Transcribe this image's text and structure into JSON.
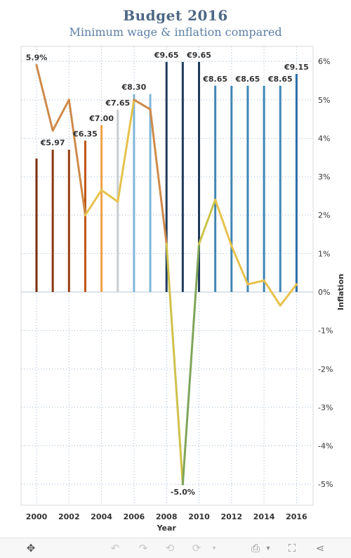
{
  "header": {
    "title": "Budget  2016",
    "subtitle": "Minimum wage & inflation compared"
  },
  "chart_data": {
    "type": "bar",
    "x": [
      2000,
      2001,
      2002,
      2003,
      2004,
      2005,
      2006,
      2007,
      2008,
      2009,
      2010,
      2011,
      2012,
      2013,
      2014,
      2015,
      2016
    ],
    "xlabel": "Year",
    "x_tick_labels": [
      "2000",
      "2002",
      "2004",
      "2006",
      "2008",
      "2010",
      "2012",
      "2014",
      "2016"
    ],
    "series": [
      {
        "type": "bar",
        "values": [
          5.6,
          5.97,
          5.97,
          6.35,
          7.0,
          7.65,
          8.3,
          8.3,
          9.65,
          9.65,
          9.65,
          8.65,
          8.65,
          8.65,
          8.65,
          8.65,
          9.15
        ],
        "colors": [
          "#7a2e0c",
          "#8b3512",
          "#983c10",
          "#c05414",
          "#f0a04a",
          "#c7ccd0",
          "#7fb6d9",
          "#7fb6d9",
          "#1f3b5c",
          "#1f3b5c",
          "#1f3b5c",
          "#3f86b4",
          "#3f86b4",
          "#3f86b4",
          "#3f86b4",
          "#3f86b4",
          "#2a6da8"
        ],
        "data_labels": [
          {
            "x": 2001,
            "text": "€5.97"
          },
          {
            "x": 2003,
            "text": "€6.35"
          },
          {
            "x": 2004,
            "text": "€7.00"
          },
          {
            "x": 2005,
            "text": "€7.65"
          },
          {
            "x": 2006,
            "text": "€8.30"
          },
          {
            "x": 2008,
            "text": "€9.65"
          },
          {
            "x": 2010,
            "text": "€9.65"
          },
          {
            "x": 2011,
            "text": "€8.65"
          },
          {
            "x": 2013,
            "text": "€8.65"
          },
          {
            "x": 2015,
            "text": "€8.65"
          },
          {
            "x": 2016,
            "text": "€9.15"
          }
        ]
      },
      {
        "type": "line",
        "values": [
          5.9,
          4.2,
          5.0,
          2.0,
          2.65,
          2.35,
          5.0,
          4.75,
          1.25,
          -5.0,
          1.25,
          2.4,
          1.2,
          0.2,
          0.3,
          -0.35,
          0.2
        ],
        "colors": [
          "#cf8a4a",
          "#cf8a4a",
          "#cf8a4a",
          "#e6c24c",
          "#e6c24c",
          "#e6c24c",
          "#cf8a4a",
          "#cf8a4a",
          "#cfc14a",
          "#7fa55a",
          "#c9c34a",
          "#e6c24c",
          "#e6c24c",
          "#e6c24c",
          "#e6c24c",
          "#e6c24c",
          "#e6c24c"
        ],
        "data_labels": [
          {
            "x": 2000,
            "text": "5.9%"
          },
          {
            "x": 2009,
            "text": "-5.0%"
          }
        ]
      }
    ],
    "y_right": {
      "label": "Inflation",
      "ylim": [
        -5.55,
        6.3
      ],
      "ticks": [
        -5,
        -4,
        -3,
        -2,
        -1,
        0,
        1,
        2,
        3,
        4,
        5,
        6
      ],
      "tick_labels": [
        "-5%",
        "-4%",
        "-3%",
        "-2%",
        "-1%",
        "0%",
        "1%",
        "2%",
        "3%",
        "4%",
        "5%",
        "6%"
      ]
    },
    "bar_ylim": [
      0,
      9.65
    ],
    "grid": true
  },
  "toolbar": {
    "icons": [
      "move-icon",
      "undo-icon",
      "redo-icon",
      "revert-icon",
      "refresh-icon",
      "dropdown-icon",
      "download-icon",
      "fullscreen-icon",
      "share-icon"
    ]
  }
}
